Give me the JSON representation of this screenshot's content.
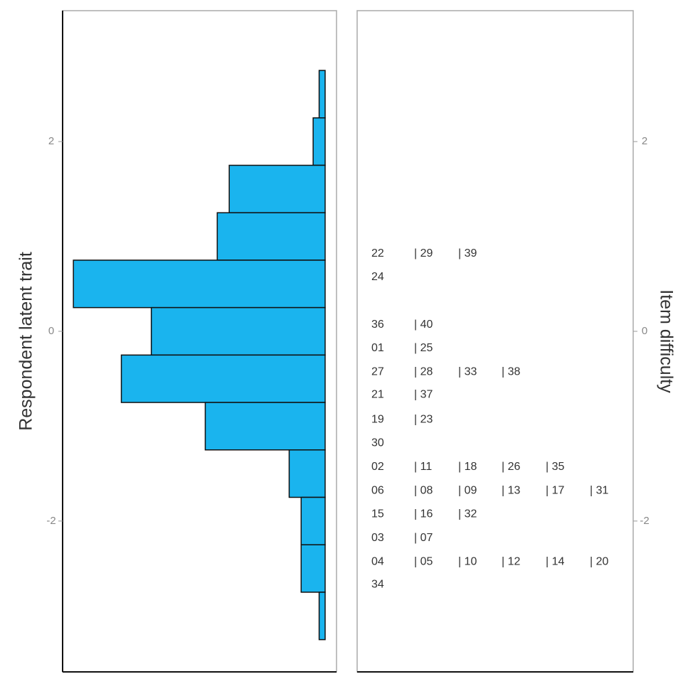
{
  "chart_data": {
    "type": "wright_map",
    "ylabel": "Respondent latent trait",
    "y2label": "Item difficulty",
    "ylim": [
      -3.59,
      3.38
    ],
    "yticks": [
      2,
      0,
      -2
    ],
    "y2ticks": [
      2,
      0,
      -2
    ],
    "bins": [
      2.75,
      2.25,
      1.75,
      1.25,
      0.75,
      0.25,
      -0.25,
      -0.75,
      -1.25,
      -1.75,
      -2.25,
      -2.75,
      -3.25
    ],
    "counts": [
      1,
      2,
      16,
      18,
      42,
      29,
      34,
      20,
      6,
      4,
      4,
      1
    ],
    "xlim": [
      0,
      43.8
    ],
    "color": "#1ab4ee",
    "items": [
      {
        "difficulty": 0.82,
        "labels": [
          "22",
          "| 29",
          "| 39"
        ]
      },
      {
        "difficulty": 0.57,
        "labels": [
          "24"
        ]
      },
      {
        "difficulty": 0.07,
        "labels": [
          "36",
          "| 40"
        ]
      },
      {
        "difficulty": -0.18,
        "labels": [
          "01",
          "| 25"
        ]
      },
      {
        "difficulty": -0.43,
        "labels": [
          "27",
          "| 28",
          "| 33",
          "| 38"
        ]
      },
      {
        "difficulty": -0.67,
        "labels": [
          "21",
          "| 37"
        ]
      },
      {
        "difficulty": -0.93,
        "labels": [
          "19",
          "| 23"
        ]
      },
      {
        "difficulty": -1.18,
        "labels": [
          "30"
        ]
      },
      {
        "difficulty": -1.43,
        "labels": [
          "02",
          "| 11",
          "| 18",
          "| 26",
          "| 35"
        ]
      },
      {
        "difficulty": -1.68,
        "labels": [
          "06",
          "| 08",
          "| 09",
          "| 13",
          "| 17",
          "| 31"
        ]
      },
      {
        "difficulty": -1.93,
        "labels": [
          "15",
          "| 16",
          "| 32"
        ]
      },
      {
        "difficulty": -2.18,
        "labels": [
          "03",
          "| 07"
        ]
      },
      {
        "difficulty": -2.43,
        "labels": [
          "04",
          "| 05",
          "| 10",
          "| 12",
          "| 14",
          "| 20"
        ]
      },
      {
        "difficulty": -2.67,
        "labels": [
          "34"
        ]
      }
    ]
  }
}
